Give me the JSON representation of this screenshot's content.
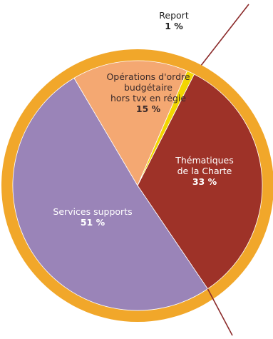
{
  "chart_data": {
    "type": "pie",
    "slices": [
      {
        "label_lines": [
          "Thématiques",
          "de la Charte"
        ],
        "value_label": "33 %",
        "value": 33,
        "color": "#9e3228",
        "text_color": "#ffffff"
      },
      {
        "label_lines": [
          "Services supports"
        ],
        "value_label": "51 %",
        "value": 51,
        "color": "#9a84b8",
        "text_color": "#ffffff"
      },
      {
        "label_lines": [
          "Opérations d'ordre",
          "budgétaire",
          "hors tvx en régie"
        ],
        "value_label": "15 %",
        "value": 15,
        "color": "#f4a872",
        "text_color": "#3a2a2a"
      },
      {
        "label_lines": [
          "Report"
        ],
        "value_label": "1 %",
        "value": 1,
        "color": "#f2d600",
        "text_color": "#222222"
      }
    ],
    "colors": {
      "ring": "#f1a72a",
      "leader_line": "#8b2a2a",
      "separator": "#ffffff"
    }
  }
}
